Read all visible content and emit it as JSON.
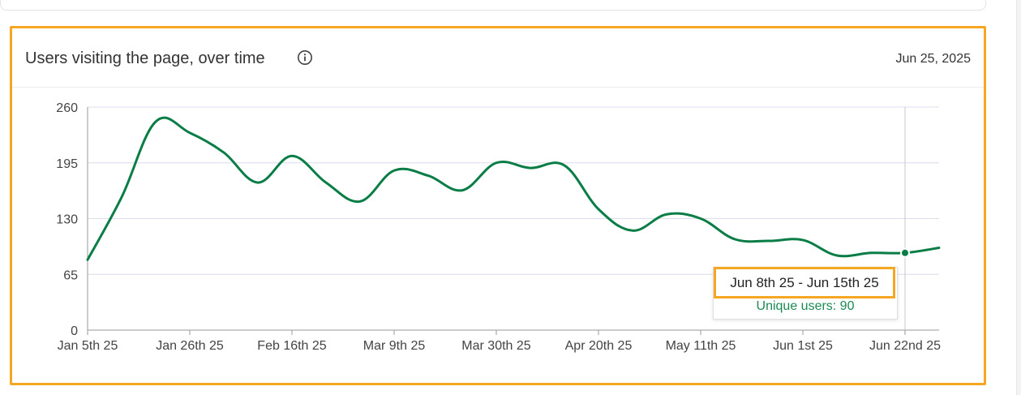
{
  "card": {
    "title": "Users visiting the page, over time",
    "date": "Jun 25, 2025"
  },
  "colors": {
    "line": "#0a7d46",
    "grid": "#dcdcec",
    "highlight": "#f5a623",
    "tooltip_value": "#1a8a52"
  },
  "icons": {
    "info": "info-circle-icon"
  },
  "tooltip": {
    "range": "Jun 8th 25 - Jun 15th 25",
    "value": "Unique users: 90"
  },
  "chart_data": {
    "type": "line",
    "title": "Users visiting the page, over time",
    "xlabel": "",
    "ylabel": "",
    "ylim": [
      0,
      260
    ],
    "yticks": [
      0,
      65,
      130,
      195,
      260
    ],
    "xtick_labels": [
      "Jan 5th 25",
      "Jan 26th 25",
      "Feb 16th 25",
      "Mar 9th 25",
      "Mar 30th 25",
      "Apr 20th 25",
      "May 11th 25",
      "Jun 1st 25",
      "Jun 22nd 25"
    ],
    "grid": true,
    "series": [
      {
        "values": [
          82,
          155,
          243,
          230,
          207,
          172,
          203,
          172,
          150,
          186,
          180,
          163,
          195,
          189,
          192,
          141,
          116,
          135,
          130,
          106,
          104,
          105,
          87,
          90,
          90,
          96
        ]
      }
    ],
    "highlighted_point": {
      "index": 24,
      "value": 90
    }
  }
}
